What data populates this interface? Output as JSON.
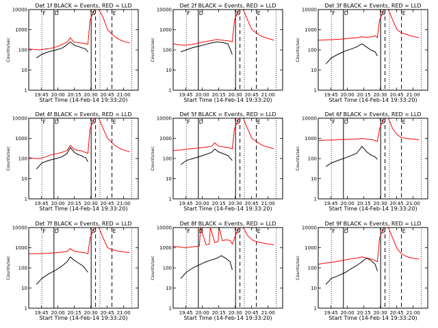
{
  "figure": {
    "x_axis_label": "Start Time (14-Feb-14 19:33:20)",
    "y_axis_label": "Counts/sec",
    "y_ticks": [
      "1",
      "10",
      "100",
      "1000",
      "10000"
    ],
    "x_ticks": [
      "19:45",
      "20:00",
      "20:15",
      "20:30",
      "20:45",
      "21:00"
    ],
    "line_colors": {
      "events": "#000000",
      "lld": "#ff0000"
    },
    "markers": [
      "F",
      "D",
      "S",
      "E"
    ]
  },
  "chart_data": [
    {
      "type": "line",
      "title": "Det 1f BLACK = Events, RED = LLD",
      "yscale": "log",
      "ylim": [
        1,
        10000
      ],
      "x_unit": "minutes since 19:33:20",
      "series": [
        {
          "name": "Events",
          "color": "#000000",
          "x": [
            7,
            12,
            18,
            25,
            30,
            33,
            35,
            38,
            41,
            43,
            45,
            48,
            50,
            52,
            54
          ],
          "values": [
            40,
            60,
            80,
            100,
            120,
            150,
            180,
            250,
            180,
            160,
            150,
            130,
            120,
            110,
            80
          ]
        },
        {
          "name": "LLD",
          "color": "#ff0000",
          "x": [
            0,
            5,
            10,
            15,
            20,
            25,
            30,
            33,
            35,
            38,
            41,
            44,
            48,
            52,
            54,
            56,
            60,
            64,
            68,
            72,
            76,
            80,
            84,
            88,
            92
          ],
          "values": [
            110,
            105,
            100,
            110,
            120,
            140,
            180,
            220,
            240,
            400,
            250,
            230,
            220,
            200,
            190,
            3000,
            10000,
            10000,
            4000,
            1000,
            600,
            400,
            300,
            250,
            220
          ]
        }
      ],
      "vlines_dotted": [
        12,
        65,
        94
      ],
      "vlines_solid": [
        23,
        57
      ],
      "vlines_dashed": [
        61,
        76
      ]
    },
    {
      "type": "line",
      "title": "Det 2f BLACK = Events, RED = LLD",
      "yscale": "log",
      "ylim": [
        1,
        10000
      ],
      "series": [
        {
          "name": "Events",
          "color": "#000000",
          "x": [
            7,
            12,
            18,
            25,
            30,
            35,
            40,
            45,
            50,
            54
          ],
          "values": [
            80,
            100,
            130,
            160,
            190,
            220,
            250,
            230,
            200,
            60
          ]
        },
        {
          "name": "LLD",
          "color": "#ff0000",
          "x": [
            0,
            5,
            10,
            15,
            20,
            25,
            30,
            35,
            40,
            45,
            50,
            54,
            56,
            60,
            64,
            68,
            72,
            76,
            80,
            84,
            88,
            92
          ],
          "values": [
            200,
            180,
            170,
            180,
            200,
            230,
            260,
            290,
            330,
            300,
            280,
            250,
            3000,
            10000,
            10000,
            3000,
            1000,
            700,
            500,
            400,
            350,
            300
          ]
        }
      ],
      "vlines_dotted": [
        12,
        65,
        94
      ],
      "vlines_solid": [
        23,
        57
      ],
      "vlines_dashed": [
        61,
        76
      ]
    },
    {
      "type": "line",
      "title": "Det 3f BLACK = Events, RED = LLD",
      "yscale": "log",
      "ylim": [
        1,
        10000
      ],
      "series": [
        {
          "name": "Events",
          "color": "#000000",
          "x": [
            7,
            12,
            18,
            25,
            30,
            35,
            40,
            44,
            48,
            52,
            54
          ],
          "values": [
            20,
            40,
            60,
            90,
            110,
            140,
            200,
            140,
            100,
            80,
            50
          ]
        },
        {
          "name": "LLD",
          "color": "#ff0000",
          "x": [
            0,
            5,
            10,
            15,
            20,
            25,
            30,
            35,
            40,
            44,
            48,
            52,
            54,
            56,
            60,
            64,
            68,
            72,
            76,
            80,
            84,
            88,
            92
          ],
          "values": [
            300,
            310,
            320,
            330,
            340,
            360,
            380,
            400,
            450,
            420,
            440,
            500,
            400,
            3000,
            10000,
            10000,
            3000,
            1000,
            700,
            600,
            500,
            450,
            400
          ]
        }
      ],
      "vlines_dotted": [
        12,
        65,
        94
      ],
      "vlines_solid": [
        23,
        57
      ],
      "vlines_dashed": [
        61,
        76
      ]
    },
    {
      "type": "line",
      "title": "Det 4f BLACK = Events, RED = LLD",
      "yscale": "log",
      "ylim": [
        1,
        10000
      ],
      "series": [
        {
          "name": "Events",
          "color": "#000000",
          "x": [
            7,
            12,
            18,
            25,
            30,
            33,
            35,
            38,
            41,
            43,
            45,
            48,
            50,
            52,
            54
          ],
          "values": [
            30,
            60,
            80,
            100,
            120,
            150,
            180,
            350,
            220,
            180,
            160,
            140,
            120,
            110,
            70
          ]
        },
        {
          "name": "LLD",
          "color": "#ff0000",
          "x": [
            0,
            5,
            10,
            15,
            20,
            25,
            30,
            33,
            35,
            38,
            41,
            44,
            48,
            52,
            54,
            56,
            60,
            64,
            68,
            72,
            76,
            80,
            84,
            88,
            92
          ],
          "values": [
            110,
            100,
            100,
            120,
            150,
            170,
            200,
            230,
            250,
            450,
            300,
            260,
            240,
            200,
            180,
            3000,
            10000,
            10000,
            3000,
            1000,
            600,
            400,
            300,
            250,
            220
          ]
        }
      ],
      "vlines_dotted": [
        12,
        65,
        94
      ],
      "vlines_solid": [
        23,
        57
      ],
      "vlines_dashed": [
        61,
        76
      ]
    },
    {
      "type": "line",
      "title": "Det 5f BLACK = Events, RED = LLD",
      "yscale": "log",
      "ylim": [
        1,
        10000
      ],
      "series": [
        {
          "name": "Events",
          "color": "#000000",
          "x": [
            7,
            12,
            18,
            25,
            30,
            35,
            38,
            41,
            45,
            50,
            54
          ],
          "values": [
            50,
            80,
            100,
            130,
            160,
            200,
            300,
            220,
            180,
            140,
            80
          ]
        },
        {
          "name": "LLD",
          "color": "#ff0000",
          "x": [
            0,
            5,
            10,
            15,
            20,
            25,
            30,
            35,
            38,
            41,
            45,
            50,
            54,
            56,
            60,
            64,
            68,
            72,
            76,
            80,
            84,
            88,
            92
          ],
          "values": [
            250,
            260,
            280,
            300,
            320,
            340,
            370,
            400,
            600,
            420,
            380,
            350,
            300,
            3000,
            10000,
            10000,
            3000,
            1000,
            700,
            500,
            400,
            350,
            300
          ]
        }
      ],
      "vlines_dotted": [
        12,
        65,
        94
      ],
      "vlines_solid": [
        23,
        57
      ],
      "vlines_dashed": [
        61,
        76
      ]
    },
    {
      "type": "line",
      "title": "Det 6f BLACK = Events, RED = LLD",
      "yscale": "log",
      "ylim": [
        1,
        10000
      ],
      "series": [
        {
          "name": "Events",
          "color": "#000000",
          "x": [
            7,
            12,
            18,
            25,
            30,
            35,
            40,
            44,
            48,
            52,
            54
          ],
          "values": [
            40,
            60,
            80,
            110,
            140,
            180,
            400,
            220,
            150,
            120,
            90
          ]
        },
        {
          "name": "LLD",
          "color": "#ff0000",
          "x": [
            0,
            5,
            10,
            15,
            20,
            25,
            30,
            35,
            40,
            45,
            50,
            54,
            56,
            60,
            64,
            68,
            72,
            76,
            80,
            84,
            88,
            92
          ],
          "values": [
            800,
            810,
            820,
            840,
            860,
            880,
            900,
            920,
            1000,
            900,
            850,
            700,
            3000,
            10000,
            10000,
            3000,
            1500,
            1100,
            1000,
            950,
            900,
            850
          ]
        }
      ],
      "vlines_dotted": [
        12,
        65,
        94
      ],
      "vlines_solid": [
        23,
        57
      ],
      "vlines_dashed": [
        61,
        76
      ]
    },
    {
      "type": "line",
      "title": "Det 7f BLACK = Events, RED = LLD",
      "yscale": "log",
      "ylim": [
        1,
        10000
      ],
      "series": [
        {
          "name": "Events",
          "color": "#000000",
          "x": [
            7,
            12,
            18,
            25,
            30,
            35,
            38,
            41,
            45,
            50,
            54
          ],
          "values": [
            15,
            30,
            50,
            80,
            120,
            200,
            350,
            250,
            180,
            120,
            60
          ]
        },
        {
          "name": "LLD",
          "color": "#ff0000",
          "x": [
            0,
            5,
            10,
            15,
            20,
            25,
            30,
            35,
            38,
            41,
            45,
            50,
            54,
            56,
            60,
            64,
            68,
            72,
            76,
            80,
            84,
            88,
            92
          ],
          "values": [
            500,
            500,
            510,
            520,
            540,
            560,
            600,
            650,
            900,
            700,
            620,
            580,
            500,
            3000,
            10000,
            10000,
            3000,
            1000,
            800,
            700,
            650,
            600,
            580
          ]
        }
      ],
      "vlines_dotted": [
        12,
        65,
        94
      ],
      "vlines_solid": [
        23,
        57
      ],
      "vlines_dashed": [
        61,
        76
      ]
    },
    {
      "type": "line",
      "title": "Det 8f BLACK = Events, RED = LLD",
      "yscale": "log",
      "ylim": [
        1,
        10000
      ],
      "series": [
        {
          "name": "Events",
          "color": "#000000",
          "x": [
            7,
            12,
            18,
            25,
            30,
            35,
            40,
            44,
            48,
            52,
            54
          ],
          "values": [
            30,
            60,
            100,
            150,
            200,
            250,
            300,
            400,
            300,
            200,
            80
          ]
        },
        {
          "name": "LLD",
          "color": "#ff0000",
          "x": [
            0,
            5,
            10,
            15,
            20,
            24,
            25,
            30,
            33,
            34,
            38,
            41,
            42,
            45,
            48,
            52,
            54,
            56,
            60,
            64,
            68,
            72,
            76,
            80,
            84,
            88,
            92
          ],
          "values": [
            1200,
            1100,
            1000,
            1050,
            1150,
            1200,
            10000,
            1400,
            1500,
            10000,
            1800,
            2000,
            10000,
            2200,
            2500,
            2300,
            1500,
            3000,
            10000,
            10000,
            4000,
            2500,
            2000,
            1800,
            1600,
            1500,
            1400
          ]
        }
      ],
      "vlines_dotted": [
        12,
        65,
        94
      ],
      "vlines_solid": [
        23,
        57
      ],
      "vlines_dashed": [
        61,
        76
      ]
    },
    {
      "type": "line",
      "title": "Det 9f BLACK = Events, RED = LLD",
      "yscale": "log",
      "ylim": [
        1,
        10000
      ],
      "series": [
        {
          "name": "Events",
          "color": "#000000",
          "x": [
            7,
            12,
            18,
            25,
            30,
            35,
            40,
            44,
            48,
            52,
            54
          ],
          "values": [
            15,
            30,
            40,
            60,
            90,
            130,
            200,
            300,
            240,
            150,
            70
          ]
        },
        {
          "name": "LLD",
          "color": "#ff0000",
          "x": [
            0,
            5,
            10,
            15,
            20,
            25,
            30,
            35,
            40,
            45,
            50,
            54,
            56,
            60,
            64,
            68,
            72,
            76,
            80,
            84,
            88,
            92
          ],
          "values": [
            150,
            170,
            180,
            200,
            220,
            250,
            280,
            300,
            350,
            300,
            260,
            200,
            3000,
            10000,
            10000,
            3000,
            900,
            500,
            380,
            320,
            290,
            270
          ]
        }
      ],
      "vlines_dotted": [
        12,
        65,
        94
      ],
      "vlines_solid": [
        23,
        57
      ],
      "vlines_dashed": [
        61,
        76
      ]
    }
  ]
}
